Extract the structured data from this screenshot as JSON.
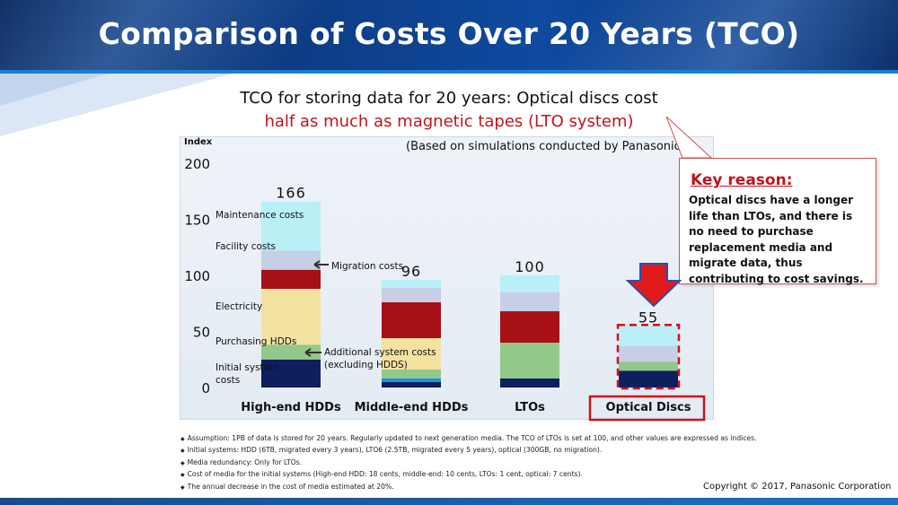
{
  "title": "Comparison of Costs Over 20 Years (TCO)",
  "subtitle_line1": "TCO for storing data for 20 years:  Optical discs cost",
  "subtitle_line2": "half as much as magnetic tapes (LTO system)",
  "based_on": "(Based on simulations conducted by Panasonic)",
  "callout": {
    "title": "Key reason:",
    "body": "Optical discs have a longer life than LTOs, and there is no need to purchase replacement media and migrate data, thus contributing to cost savings."
  },
  "notes": [
    "Assumption: 1PB of data is stored for 20 years.  Regularly updated to next generation media.  The TCO of LTOs is set at 100, and other values are expressed as indices.",
    "Initial systems:  HDD (6TB, migrated every 3 years), LTO6 (2.5TB, migrated every 5 years), optical (300GB, no migration).",
    "Media redundancy: Only for LTOs.",
    "Cost of media for the initial systems (High-end HDD: 18 cents, middle-end: 10 cents, LTOs: 1 cent, optical: 7 cents).",
    "The annual decrease in the cost of media estimated at 20%."
  ],
  "copyright": "Copyright © 2017, Panasonic Corporation",
  "colors": {
    "initial_system": "#0d1f5c",
    "additional_system": "#1e90d8",
    "purchasing": "#92c88a",
    "electricity": "#f3e2a0",
    "migration": "#a81018",
    "facility": "#c6cfe6",
    "maintenance": "#b8f0f6",
    "highlight": "#d0101a"
  },
  "chart_data": {
    "type": "bar",
    "stacked": true,
    "ylabel": "Index",
    "ylim": [
      0,
      200
    ],
    "yticks": [
      0,
      50,
      100,
      150,
      200
    ],
    "categories": [
      "High-end HDDs",
      "Middle-end HDDs",
      "LTOs",
      "Optical Discs"
    ],
    "totals": [
      166,
      96,
      100,
      55
    ],
    "series": [
      {
        "name": "Initial system costs",
        "values": [
          25,
          5,
          8,
          15
        ]
      },
      {
        "name": "Additional system costs (excluding HDDS)",
        "values": [
          0,
          3,
          0,
          0
        ]
      },
      {
        "name": "Purchasing HDDs",
        "values": [
          13,
          8,
          32,
          8
        ]
      },
      {
        "name": "Electricity",
        "values": [
          50,
          28,
          0,
          0
        ]
      },
      {
        "name": "Migration costs",
        "values": [
          17,
          32,
          28,
          0
        ]
      },
      {
        "name": "Facility costs",
        "values": [
          17,
          13,
          17,
          14
        ]
      },
      {
        "name": "Maintenance costs",
        "values": [
          44,
          7,
          15,
          18
        ]
      }
    ],
    "series_colors": [
      "#0d1f5c",
      "#1e90d8",
      "#92c88a",
      "#f3e2a0",
      "#a81018",
      "#c6cfe6",
      "#b8f0f6"
    ],
    "segment_labels": {
      "Maintenance costs": "Maintenance costs",
      "Facility costs": "Facility costs",
      "Migration costs": "Migration costs",
      "Electricity": "Electricity",
      "Purchasing HDDs": "Purchasing HDDs",
      "Additional system costs": [
        "Additional system costs",
        "(excluding HDDS)"
      ],
      "Initial system costs": [
        "Initial system",
        "costs"
      ]
    }
  }
}
